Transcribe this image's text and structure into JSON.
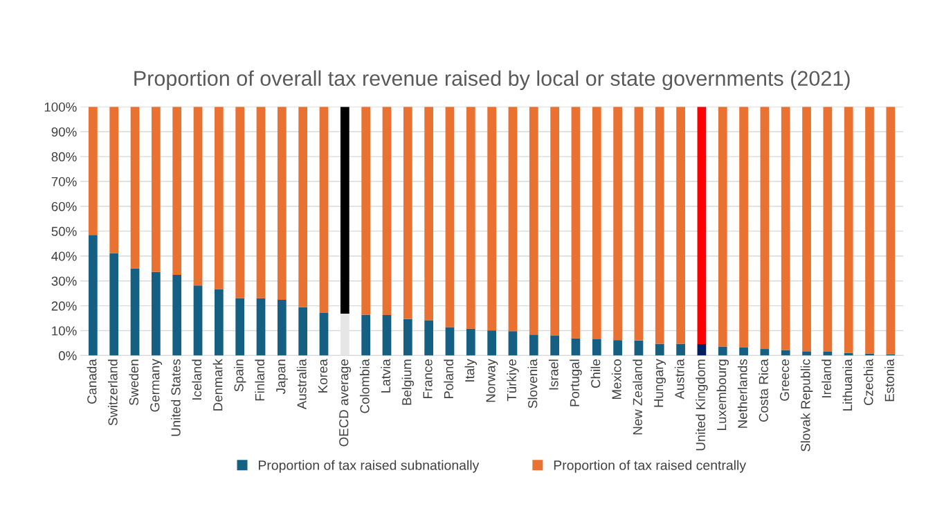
{
  "chart_data": {
    "type": "bar",
    "stacked": true,
    "title": "Proportion of overall tax revenue raised by local or state governments (2021)",
    "categories": [
      "Canada",
      "Switzerland",
      "Sweden",
      "Germany",
      "United States",
      "Iceland",
      "Denmark",
      "Spain",
      "Finland",
      "Japan",
      "Australia",
      "Korea",
      "OECD average",
      "Colombia",
      "Latvia",
      "Belgium",
      "France",
      "Poland",
      "Italy",
      "Norway",
      "Türkiye",
      "Slovenia",
      "Israel",
      "Portugal",
      "Chile",
      "Mexico",
      "New Zealand",
      "Hungary",
      "Austria",
      "United Kingdom",
      "Luxembourg",
      "Netherlands",
      "Costa Rica",
      "Greece",
      "Slovak Republic",
      "Ireland",
      "Lithuania",
      "Czechia",
      "Estonia"
    ],
    "series": [
      {
        "name": "Proportion of tax raised subnationally",
        "color": "#156082",
        "colors": [
          "#156082",
          "#156082",
          "#156082",
          "#156082",
          "#156082",
          "#156082",
          "#156082",
          "#156082",
          "#156082",
          "#156082",
          "#156082",
          "#156082",
          "#e7e6e6",
          "#156082",
          "#156082",
          "#156082",
          "#156082",
          "#156082",
          "#156082",
          "#156082",
          "#156082",
          "#156082",
          "#156082",
          "#156082",
          "#156082",
          "#156082",
          "#156082",
          "#156082",
          "#156082",
          "#002060",
          "#156082",
          "#156082",
          "#156082",
          "#156082",
          "#156082",
          "#156082",
          "#156082",
          "#156082",
          "#156082"
        ],
        "values": [
          48.5,
          41.1,
          35.0,
          33.6,
          32.4,
          28.2,
          26.7,
          23.1,
          23.0,
          22.4,
          19.4,
          17.1,
          16.8,
          16.4,
          16.3,
          14.7,
          14.2,
          11.4,
          10.8,
          10.1,
          9.8,
          8.4,
          8.1,
          6.9,
          6.7,
          6.2,
          6.0,
          4.7,
          4.7,
          4.6,
          3.6,
          3.2,
          2.6,
          2.2,
          1.7,
          1.5,
          1.0,
          0.8,
          0.5
        ]
      },
      {
        "name": "Proportion of tax raised centrally",
        "color": "#e97132",
        "colors": [
          "#e97132",
          "#e97132",
          "#e97132",
          "#e97132",
          "#e97132",
          "#e97132",
          "#e97132",
          "#e97132",
          "#e97132",
          "#e97132",
          "#e97132",
          "#e97132",
          "#000000",
          "#e97132",
          "#e97132",
          "#e97132",
          "#e97132",
          "#e97132",
          "#e97132",
          "#e97132",
          "#e97132",
          "#e97132",
          "#e97132",
          "#e97132",
          "#e97132",
          "#e97132",
          "#e97132",
          "#e97132",
          "#e97132",
          "#ff0000",
          "#e97132",
          "#e97132",
          "#e97132",
          "#e97132",
          "#e97132",
          "#e97132",
          "#e97132",
          "#e97132",
          "#e97132"
        ],
        "values": [
          51.5,
          58.9,
          65.0,
          66.4,
          67.6,
          71.8,
          73.3,
          76.9,
          77.0,
          77.6,
          80.6,
          82.9,
          83.2,
          83.6,
          83.7,
          85.3,
          85.8,
          88.6,
          89.2,
          89.9,
          90.2,
          91.6,
          91.9,
          93.1,
          93.3,
          93.8,
          94.0,
          95.3,
          95.3,
          95.4,
          96.4,
          96.8,
          97.4,
          97.8,
          98.3,
          98.5,
          99.0,
          99.2,
          99.5
        ]
      }
    ],
    "ylim": [
      0,
      100
    ],
    "yticks": [
      {
        "value": 0,
        "label": "0%"
      },
      {
        "value": 10,
        "label": "10%"
      },
      {
        "value": 20,
        "label": "20%"
      },
      {
        "value": 30,
        "label": "30%"
      },
      {
        "value": 40,
        "label": "40%"
      },
      {
        "value": 50,
        "label": "50%"
      },
      {
        "value": 60,
        "label": "60%"
      },
      {
        "value": 70,
        "label": "70%"
      },
      {
        "value": 80,
        "label": "80%"
      },
      {
        "value": 90,
        "label": "90%"
      },
      {
        "value": 100,
        "label": "100%"
      }
    ],
    "grid": "y",
    "legend": "bottom"
  }
}
